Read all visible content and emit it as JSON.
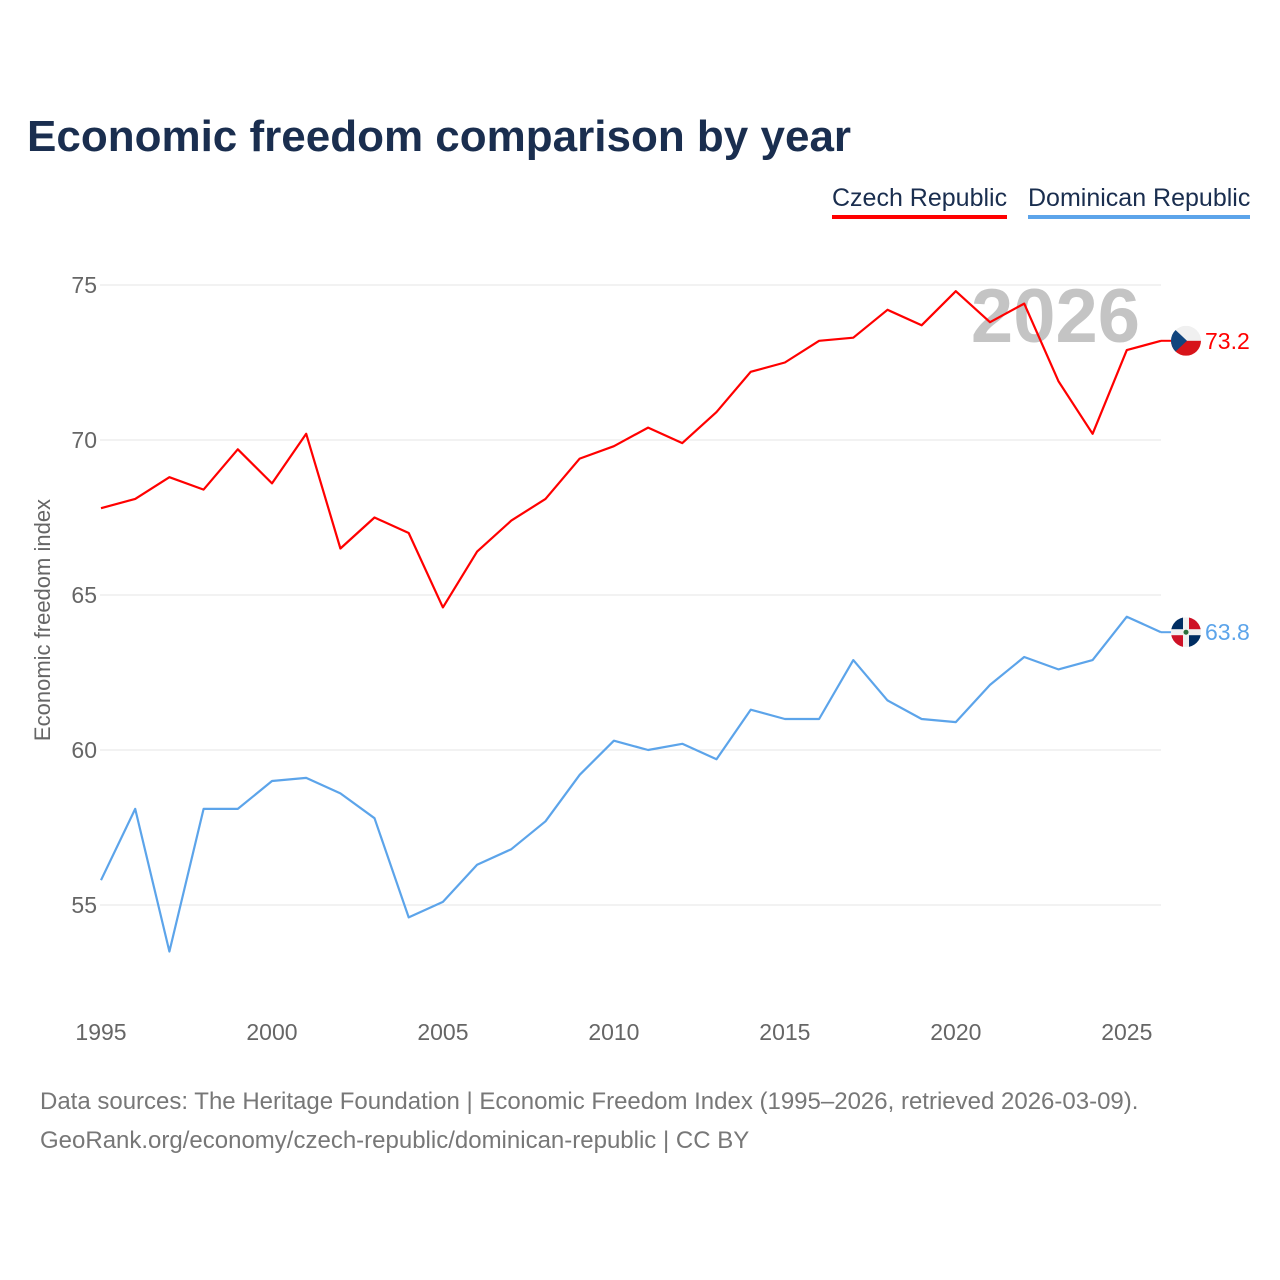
{
  "chart_data": {
    "type": "line",
    "title": "Economic freedom comparison by year",
    "xlabel": "",
    "ylabel": "Economic freedom index",
    "x": [
      1995,
      1996,
      1997,
      1998,
      1999,
      2000,
      2001,
      2002,
      2003,
      2004,
      2005,
      2006,
      2007,
      2008,
      2009,
      2010,
      2011,
      2012,
      2013,
      2014,
      2015,
      2016,
      2017,
      2018,
      2019,
      2020,
      2021,
      2022,
      2023,
      2024,
      2025,
      2026
    ],
    "series": [
      {
        "name": "Czech Republic",
        "color": "#ff0000",
        "end_label": "73.2",
        "flag": "czech-flag",
        "values": [
          67.8,
          68.1,
          68.8,
          68.4,
          69.7,
          68.6,
          70.2,
          66.5,
          67.5,
          67.0,
          64.6,
          66.4,
          67.4,
          68.1,
          69.4,
          69.8,
          70.4,
          69.9,
          70.9,
          72.2,
          72.5,
          73.2,
          73.3,
          74.2,
          73.7,
          74.8,
          73.8,
          74.4,
          71.9,
          70.2,
          72.9,
          73.2
        ]
      },
      {
        "name": "Dominican Republic",
        "color": "#5ca4ea",
        "end_label": "63.8",
        "flag": "dominican-flag",
        "values": [
          55.8,
          58.1,
          53.5,
          58.1,
          58.1,
          59.0,
          59.1,
          58.6,
          57.8,
          54.6,
          55.1,
          56.3,
          56.8,
          57.7,
          59.2,
          60.3,
          60.0,
          60.2,
          59.7,
          61.3,
          61.0,
          61.0,
          62.9,
          61.6,
          61.0,
          60.9,
          62.1,
          63.0,
          62.6,
          62.9,
          64.3,
          63.8
        ]
      }
    ],
    "xlim": [
      1995,
      2026
    ],
    "ylim": [
      52,
      77
    ],
    "yticks": [
      55,
      60,
      65,
      70,
      75
    ],
    "xticks": [
      1995,
      2000,
      2005,
      2010,
      2015,
      2020,
      2025
    ],
    "year_watermark": "2026",
    "grid": true,
    "legend": "top-right"
  },
  "footer": {
    "line1": "Data sources: The Heritage Foundation | Economic Freedom Index (1995–2026, retrieved 2026-03-09).",
    "line2": "GeoRank.org/economy/czech-republic/dominican-republic | CC BY"
  }
}
